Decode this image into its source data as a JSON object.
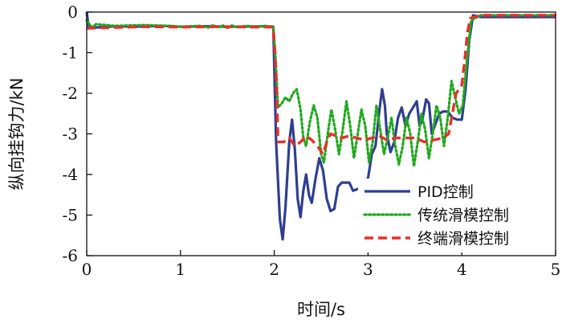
{
  "chart_data": {
    "type": "line",
    "title": "",
    "xlabel": "时间/s",
    "ylabel": "纵向挂钩力/kN",
    "xlim": [
      0,
      5
    ],
    "ylim": [
      -6,
      0
    ],
    "xticks": [
      "0",
      "1",
      "2",
      "3",
      "4",
      "5"
    ],
    "yticks": [
      "0",
      "-1",
      "-2",
      "-3",
      "-4",
      "-5",
      "-6"
    ],
    "grid": false,
    "legend_position": "bottom-right",
    "series": [
      {
        "name": "PID控制",
        "color": "#2f3f8f",
        "style": "solid",
        "points": [
          [
            0,
            0
          ],
          [
            0.02,
            -0.35
          ],
          [
            0.1,
            -0.38
          ],
          [
            0.3,
            -0.35
          ],
          [
            0.5,
            -0.36
          ],
          [
            0.8,
            -0.34
          ],
          [
            1.0,
            -0.36
          ],
          [
            1.3,
            -0.35
          ],
          [
            1.6,
            -0.36
          ],
          [
            1.9,
            -0.35
          ],
          [
            1.99,
            -0.36
          ],
          [
            2.02,
            -3.2
          ],
          [
            2.06,
            -5.1
          ],
          [
            2.09,
            -5.6
          ],
          [
            2.12,
            -4.8
          ],
          [
            2.16,
            -3.2
          ],
          [
            2.19,
            -2.65
          ],
          [
            2.22,
            -3.4
          ],
          [
            2.25,
            -4.6
          ],
          [
            2.28,
            -5.05
          ],
          [
            2.31,
            -4.4
          ],
          [
            2.34,
            -4.0
          ],
          [
            2.37,
            -4.5
          ],
          [
            2.4,
            -4.7
          ],
          [
            2.44,
            -4.1
          ],
          [
            2.48,
            -3.6
          ],
          [
            2.52,
            -3.9
          ],
          [
            2.56,
            -4.6
          ],
          [
            2.6,
            -4.9
          ],
          [
            2.64,
            -4.85
          ],
          [
            2.68,
            -4.3
          ],
          [
            2.72,
            -4.2
          ],
          [
            2.8,
            -4.2
          ],
          [
            2.84,
            -4.4
          ],
          [
            2.9,
            -4.35
          ],
          [
            2.96,
            -4.15
          ],
          [
            3.0,
            -4.1
          ],
          [
            3.04,
            -3.5
          ],
          [
            3.08,
            -3.3
          ],
          [
            3.12,
            -2.45
          ],
          [
            3.15,
            -1.9
          ],
          [
            3.18,
            -2.3
          ],
          [
            3.2,
            -3.0
          ],
          [
            3.24,
            -3.45
          ],
          [
            3.28,
            -3.2
          ],
          [
            3.32,
            -2.6
          ],
          [
            3.36,
            -2.35
          ],
          [
            3.4,
            -2.8
          ],
          [
            3.44,
            -2.5
          ],
          [
            3.48,
            -2.35
          ],
          [
            3.52,
            -2.2
          ],
          [
            3.55,
            -2.8
          ],
          [
            3.58,
            -2.65
          ],
          [
            3.62,
            -2.15
          ],
          [
            3.65,
            -2.25
          ],
          [
            3.68,
            -3.0
          ],
          [
            3.72,
            -2.75
          ],
          [
            3.76,
            -2.5
          ],
          [
            3.8,
            -2.45
          ],
          [
            3.85,
            -2.45
          ],
          [
            3.9,
            -2.6
          ],
          [
            3.95,
            -2.65
          ],
          [
            4.0,
            -2.65
          ],
          [
            4.04,
            -1.9
          ],
          [
            4.08,
            -0.7
          ],
          [
            4.12,
            -0.08
          ],
          [
            4.2,
            -0.12
          ],
          [
            4.4,
            -0.12
          ],
          [
            4.7,
            -0.12
          ],
          [
            5.0,
            -0.12
          ]
        ]
      },
      {
        "name": "传统滑模控制",
        "color": "#22a81e",
        "style": "dotted",
        "points": [
          [
            0,
            -0.2
          ],
          [
            0.05,
            -0.38
          ],
          [
            0.1,
            -0.3
          ],
          [
            0.3,
            -0.34
          ],
          [
            0.6,
            -0.32
          ],
          [
            0.9,
            -0.34
          ],
          [
            1.0,
            -0.36
          ],
          [
            1.2,
            -0.34
          ],
          [
            1.3,
            -0.38
          ],
          [
            1.35,
            -0.32
          ],
          [
            1.4,
            -0.38
          ],
          [
            1.45,
            -0.33
          ],
          [
            1.5,
            -0.39
          ],
          [
            1.55,
            -0.33
          ],
          [
            1.6,
            -0.37
          ],
          [
            1.7,
            -0.34
          ],
          [
            1.8,
            -0.36
          ],
          [
            1.9,
            -0.34
          ],
          [
            1.99,
            -0.36
          ],
          [
            2.01,
            -1.0
          ],
          [
            2.04,
            -2.35
          ],
          [
            2.08,
            -2.25
          ],
          [
            2.12,
            -2.1
          ],
          [
            2.16,
            -2.2
          ],
          [
            2.2,
            -2.0
          ],
          [
            2.24,
            -1.9
          ],
          [
            2.28,
            -2.4
          ],
          [
            2.31,
            -3.1
          ],
          [
            2.34,
            -3.3
          ],
          [
            2.38,
            -2.7
          ],
          [
            2.42,
            -2.3
          ],
          [
            2.46,
            -2.6
          ],
          [
            2.5,
            -3.5
          ],
          [
            2.53,
            -3.7
          ],
          [
            2.57,
            -3.0
          ],
          [
            2.61,
            -2.4
          ],
          [
            2.65,
            -2.9
          ],
          [
            2.69,
            -3.5
          ],
          [
            2.73,
            -2.9
          ],
          [
            2.77,
            -2.2
          ],
          [
            2.81,
            -2.8
          ],
          [
            2.85,
            -3.6
          ],
          [
            2.89,
            -3.0
          ],
          [
            2.93,
            -2.4
          ],
          [
            2.97,
            -2.8
          ],
          [
            3.01,
            -3.7
          ],
          [
            3.05,
            -3.2
          ],
          [
            3.09,
            -2.3
          ],
          [
            3.13,
            -2.9
          ],
          [
            3.17,
            -3.5
          ],
          [
            3.21,
            -3.1
          ],
          [
            3.25,
            -2.6
          ],
          [
            3.29,
            -3.3
          ],
          [
            3.33,
            -3.75
          ],
          [
            3.37,
            -3.3
          ],
          [
            3.41,
            -2.6
          ],
          [
            3.45,
            -3.0
          ],
          [
            3.49,
            -3.8
          ],
          [
            3.53,
            -3.2
          ],
          [
            3.57,
            -2.5
          ],
          [
            3.61,
            -2.9
          ],
          [
            3.65,
            -3.6
          ],
          [
            3.69,
            -3.0
          ],
          [
            3.73,
            -2.3
          ],
          [
            3.77,
            -2.6
          ],
          [
            3.81,
            -3.3
          ],
          [
            3.85,
            -2.6
          ],
          [
            3.89,
            -1.7
          ],
          [
            3.93,
            -2.1
          ],
          [
            3.97,
            -2.5
          ],
          [
            4.01,
            -2.3
          ],
          [
            4.05,
            -1.3
          ],
          [
            4.1,
            -0.2
          ],
          [
            4.2,
            -0.08
          ],
          [
            4.5,
            -0.08
          ],
          [
            5.0,
            -0.08
          ]
        ]
      },
      {
        "name": "终端滑模控制",
        "color": "#e8302a",
        "style": "dashed",
        "points": [
          [
            0,
            -0.4
          ],
          [
            0.3,
            -0.38
          ],
          [
            0.6,
            -0.36
          ],
          [
            1.0,
            -0.37
          ],
          [
            1.4,
            -0.36
          ],
          [
            1.8,
            -0.37
          ],
          [
            1.99,
            -0.37
          ],
          [
            2.02,
            -1.5
          ],
          [
            2.04,
            -3.2
          ],
          [
            2.1,
            -3.2
          ],
          [
            2.16,
            -3.1
          ],
          [
            2.22,
            -3.3
          ],
          [
            2.28,
            -3.2
          ],
          [
            2.34,
            -3.05
          ],
          [
            2.4,
            -3.15
          ],
          [
            2.46,
            -3.3
          ],
          [
            2.52,
            -3.5
          ],
          [
            2.56,
            -3.2
          ],
          [
            2.6,
            -3.0
          ],
          [
            2.66,
            -3.05
          ],
          [
            2.72,
            -3.1
          ],
          [
            2.8,
            -3.05
          ],
          [
            2.88,
            -3.1
          ],
          [
            2.96,
            -3.15
          ],
          [
            3.04,
            -3.1
          ],
          [
            3.12,
            -3.05
          ],
          [
            3.2,
            -3.15
          ],
          [
            3.3,
            -3.1
          ],
          [
            3.4,
            -3.1
          ],
          [
            3.5,
            -3.1
          ],
          [
            3.6,
            -3.2
          ],
          [
            3.7,
            -3.15
          ],
          [
            3.8,
            -3.1
          ],
          [
            3.86,
            -3.0
          ],
          [
            3.9,
            -2.5
          ],
          [
            3.94,
            -2.0
          ],
          [
            3.97,
            -1.9
          ],
          [
            4.0,
            -1.8
          ],
          [
            4.03,
            -1.2
          ],
          [
            4.06,
            -0.5
          ],
          [
            4.09,
            -0.15
          ],
          [
            4.2,
            -0.08
          ],
          [
            4.5,
            -0.08
          ],
          [
            5.0,
            -0.08
          ]
        ]
      }
    ]
  }
}
